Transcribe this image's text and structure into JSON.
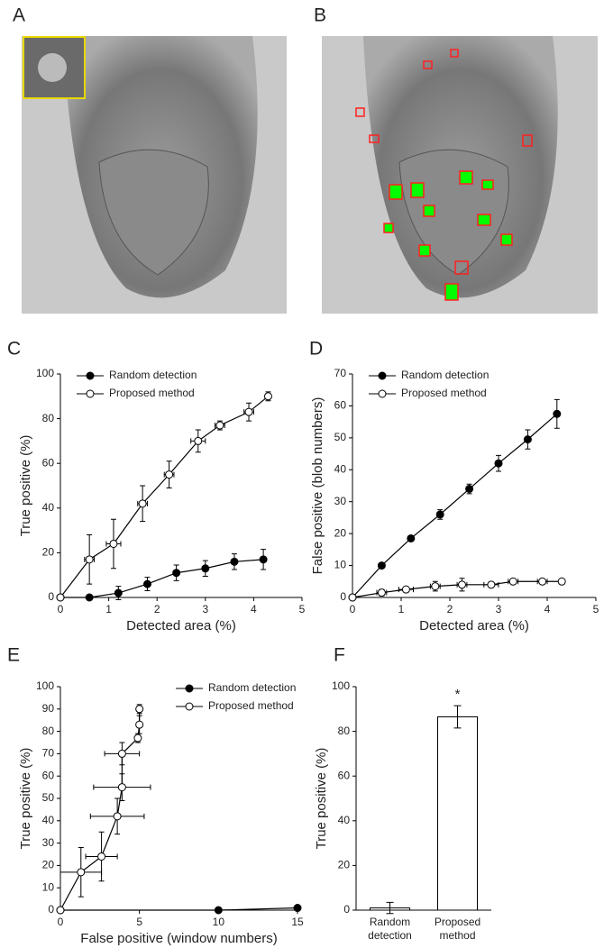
{
  "images": [
    {
      "panel": "A"
    },
    {
      "panel": "B"
    }
  ],
  "chart_data": [
    {
      "type": "line",
      "panel": "C",
      "xlabel": "Detected area (%)",
      "ylabel": "True positive (%)",
      "xlim": [
        0,
        5
      ],
      "xticks": [
        0,
        1,
        2,
        3,
        4,
        5
      ],
      "ylim": [
        0,
        100
      ],
      "yticks": [
        0,
        20,
        40,
        60,
        80,
        100
      ],
      "legend": "upper left",
      "series": [
        {
          "name": "Random detection",
          "color": "#000000",
          "marker_fill": "#000000",
          "x": [
            0,
            0.6,
            1.2,
            1.8,
            2.4,
            3.0,
            3.6,
            4.2
          ],
          "values": [
            0,
            0,
            2,
            6,
            11,
            13,
            16,
            17
          ],
          "errors": [
            0,
            0,
            3,
            3,
            3.5,
            3.5,
            3.5,
            4.5
          ]
        },
        {
          "name": "Proposed method",
          "color": "#000000",
          "marker_fill": "#ffffff",
          "x": [
            0,
            0.6,
            1.1,
            1.7,
            2.25,
            2.85,
            3.3,
            3.9,
            4.3
          ],
          "values": [
            0,
            17,
            24,
            42,
            55,
            70,
            77,
            83,
            90
          ],
          "errors": [
            0,
            11,
            11,
            8,
            6,
            5,
            2,
            4,
            2
          ],
          "x_errors": [
            0,
            0.1,
            0.15,
            0.1,
            0.1,
            0.15,
            0.1,
            0.1,
            0.05
          ]
        }
      ]
    },
    {
      "type": "line",
      "panel": "D",
      "xlabel": "Detected area (%)",
      "ylabel": "False positive (blob numbers)",
      "xlim": [
        0,
        5
      ],
      "xticks": [
        0,
        1,
        2,
        3,
        4,
        5
      ],
      "ylim": [
        0,
        70
      ],
      "yticks": [
        0,
        10,
        20,
        30,
        40,
        50,
        60,
        70
      ],
      "legend": "upper left",
      "series": [
        {
          "name": "Random detection",
          "color": "#000000",
          "marker_fill": "#000000",
          "x": [
            0,
            0.6,
            1.2,
            1.8,
            2.4,
            3.0,
            3.6,
            4.2
          ],
          "values": [
            0,
            10,
            18.5,
            26,
            34,
            42,
            49.5,
            57.5
          ],
          "errors": [
            0,
            0.5,
            0.5,
            1.5,
            1.5,
            2.5,
            3,
            4.5
          ]
        },
        {
          "name": "Proposed method",
          "color": "#000000",
          "marker_fill": "#ffffff",
          "x": [
            0,
            0.6,
            1.1,
            1.7,
            2.25,
            2.85,
            3.3,
            3.9,
            4.3
          ],
          "values": [
            0,
            1.5,
            2.5,
            3.5,
            4,
            4,
            5,
            5,
            5
          ],
          "errors": [
            0,
            1,
            0.5,
            1.5,
            2,
            0.5,
            0.5,
            0.3,
            0.3
          ],
          "x_errors": [
            0,
            0.1,
            0.15,
            0.1,
            0.1,
            0.15,
            0.1,
            0.1,
            0.05
          ]
        }
      ]
    },
    {
      "type": "line",
      "panel": "E",
      "xlabel": "False positive (window numbers)",
      "ylabel": "True positive (%)",
      "xlim": [
        0,
        15
      ],
      "xticks": [
        0,
        5,
        10,
        15
      ],
      "ylim": [
        0,
        100
      ],
      "yticks": [
        0,
        10,
        20,
        30,
        40,
        50,
        60,
        70,
        80,
        90,
        100
      ],
      "legend": "upper right",
      "series": [
        {
          "name": "Random detection",
          "color": "#000000",
          "marker_fill": "#000000",
          "x": [
            0,
            10,
            15
          ],
          "values": [
            0,
            0,
            1
          ]
        },
        {
          "name": "Proposed method",
          "color": "#000000",
          "marker_fill": "#ffffff",
          "x": [
            0,
            1.3,
            2.6,
            3.6,
            3.9,
            3.9,
            4.9,
            5.0,
            5.0
          ],
          "values": [
            0,
            17,
            24,
            42,
            55,
            70,
            77,
            83,
            90
          ],
          "errors": [
            0,
            11,
            11,
            8,
            6,
            5,
            2,
            4,
            2
          ],
          "x_errors": [
            0,
            1.3,
            1,
            1.7,
            1.8,
            1.1,
            0.1,
            0.1,
            0.1
          ]
        }
      ]
    },
    {
      "type": "bar",
      "panel": "F",
      "ylabel": "True positive (%)",
      "categories": [
        "Random detection",
        "Proposed method"
      ],
      "values": [
        1,
        86.5
      ],
      "errors": [
        2.5,
        5
      ],
      "color": "#ffffff",
      "ylim": [
        0,
        100
      ],
      "yticks": [
        0,
        20,
        40,
        60,
        80,
        100
      ],
      "annotation": "*"
    }
  ]
}
